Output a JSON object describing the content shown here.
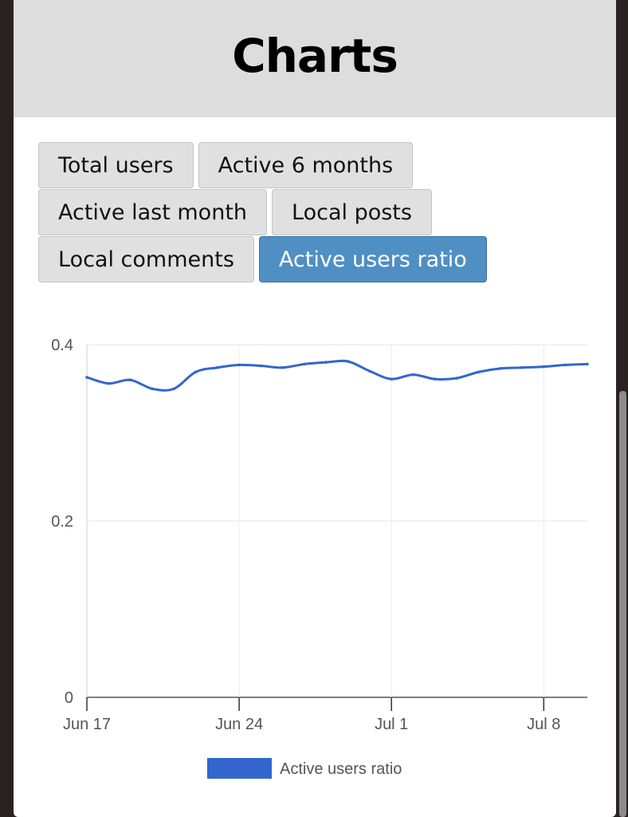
{
  "header": {
    "title": "Charts"
  },
  "buttons": [
    {
      "label": "Total users",
      "active": false
    },
    {
      "label": "Active 6 months",
      "active": false
    },
    {
      "label": "Active last month",
      "active": false
    },
    {
      "label": "Local posts",
      "active": false
    },
    {
      "label": "Local comments",
      "active": false
    },
    {
      "label": "Active users ratio",
      "active": true
    }
  ],
  "colors": {
    "series": "#3366cc",
    "active_button": "#4f8fc4",
    "button": "#e0e0e0",
    "header": "#dddddd"
  },
  "chart_data": {
    "type": "line",
    "title": "",
    "xlabel": "",
    "ylabel": "",
    "ylim": [
      0,
      0.4
    ],
    "yticks": [
      "0",
      "0.2",
      "0.4"
    ],
    "xticks": [
      "Jun 17",
      "Jun 24",
      "Jul 1",
      "Jul 8"
    ],
    "grid": true,
    "legend": "bottom",
    "x": [
      "Jun 17",
      "Jun 18",
      "Jun 19",
      "Jun 20",
      "Jun 21",
      "Jun 22",
      "Jun 23",
      "Jun 24",
      "Jun 25",
      "Jun 26",
      "Jun 27",
      "Jun 28",
      "Jun 29",
      "Jun 30",
      "Jul 1",
      "Jul 2",
      "Jul 3",
      "Jul 4",
      "Jul 5",
      "Jul 6",
      "Jul 7",
      "Jul 8",
      "Jul 9",
      "Jul 10"
    ],
    "series": [
      {
        "name": "Active users ratio",
        "values": [
          0.363,
          0.356,
          0.36,
          0.35,
          0.35,
          0.369,
          0.374,
          0.377,
          0.376,
          0.374,
          0.378,
          0.38,
          0.381,
          0.37,
          0.361,
          0.366,
          0.361,
          0.362,
          0.369,
          0.373,
          0.374,
          0.375,
          0.377,
          0.378
        ]
      }
    ]
  }
}
